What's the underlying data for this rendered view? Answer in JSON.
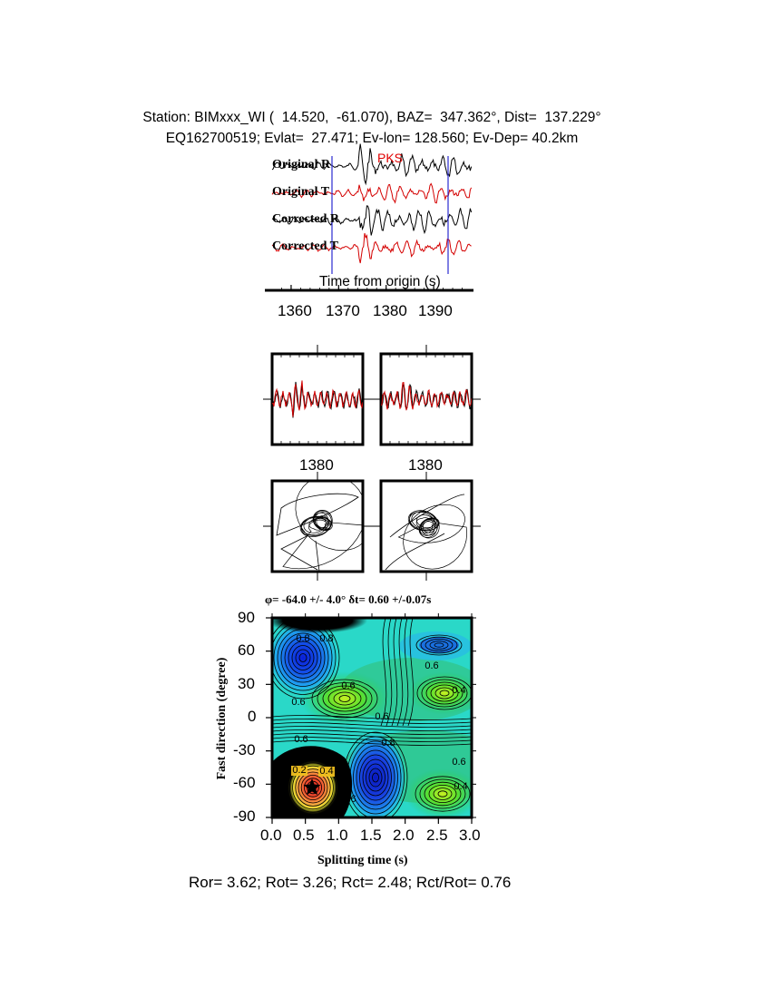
{
  "header": {
    "station_line": "Station: BIMxxx_WI (  14.520,  -61.070), BAZ=  347.362°, Dist=  137.229°",
    "event_line": "EQ162700519; Evlat=  27.471; Ev-lon= 128.560; Ev-Dep= 40.2km"
  },
  "traces": {
    "phase_label": "PKS",
    "labels": [
      "Original R",
      "Original T",
      "Corrected R",
      "Corrected T"
    ],
    "axis_label": "Time from origin (s)",
    "tick_labels": [
      "1360",
      "1370",
      "1380",
      "1390"
    ]
  },
  "waveform_panels": {
    "tick_left": "1380",
    "tick_right": "1380"
  },
  "grid_search": {
    "title": "φ= -64.0 +/- 4.0° δt= 0.60 +/-0.07s",
    "ylabel": "Fast direction (degree)",
    "xlabel": "Splitting time (s)",
    "contour_labels": [
      "0.8",
      "0.8",
      "0.6",
      "0.6",
      "0.6",
      "0.6",
      "0.4",
      "0.8",
      "0.6",
      "0.6",
      "0.4",
      "0.4",
      "0.2",
      "0.4",
      "0.6",
      "0.6"
    ]
  },
  "footer": {
    "ratios": "Ror= 3.62; Rot= 3.26; Rct= 2.48; Rct/Rot= 0.76"
  },
  "colors": {
    "trace_black": "#000000",
    "trace_red": "#d40000",
    "marker_blue": "#2b2bd0",
    "phase_red": "#e00000"
  },
  "chart_data": [
    {
      "type": "line",
      "title": "PKS",
      "xlabel": "Time from origin (s)",
      "series": [
        {
          "name": "Original R",
          "color": "#000000"
        },
        {
          "name": "Original T",
          "color": "#d40000"
        },
        {
          "name": "Corrected R",
          "color": "#000000"
        },
        {
          "name": "Corrected T",
          "color": "#d40000"
        }
      ],
      "x_ticks": [
        1360,
        1370,
        1380,
        1390
      ],
      "xlim": [
        1356,
        1398
      ],
      "window_markers": [
        1367,
        1391
      ]
    },
    {
      "type": "heatmap",
      "title": "φ= -64.0 +/- 4.0° δt= 0.60 +/-0.07s",
      "xlabel": "Splitting time (s)",
      "ylabel": "Fast direction (degree)",
      "xlim": [
        0.0,
        3.0
      ],
      "ylim": [
        -90,
        90
      ],
      "x_ticks": [
        0.0,
        0.5,
        1.0,
        1.5,
        2.0,
        2.5,
        3.0
      ],
      "y_ticks": [
        -90,
        -60,
        -30,
        0,
        30,
        60,
        90
      ],
      "best_fit": {
        "phi": -64.0,
        "phi_err": 4.0,
        "dt": 0.6,
        "dt_err": 0.07
      },
      "features": [
        {
          "x": 0.6,
          "y": -64,
          "kind": "minimum"
        },
        {
          "x": 0.4,
          "y": 55,
          "kind": "blue-low"
        },
        {
          "x": 1.55,
          "y": -52,
          "kind": "blue-low"
        },
        {
          "x": 1.0,
          "y": 12,
          "kind": "green"
        },
        {
          "x": 2.6,
          "y": -70,
          "kind": "green"
        },
        {
          "x": 2.65,
          "y": 22,
          "kind": "green"
        }
      ]
    }
  ]
}
